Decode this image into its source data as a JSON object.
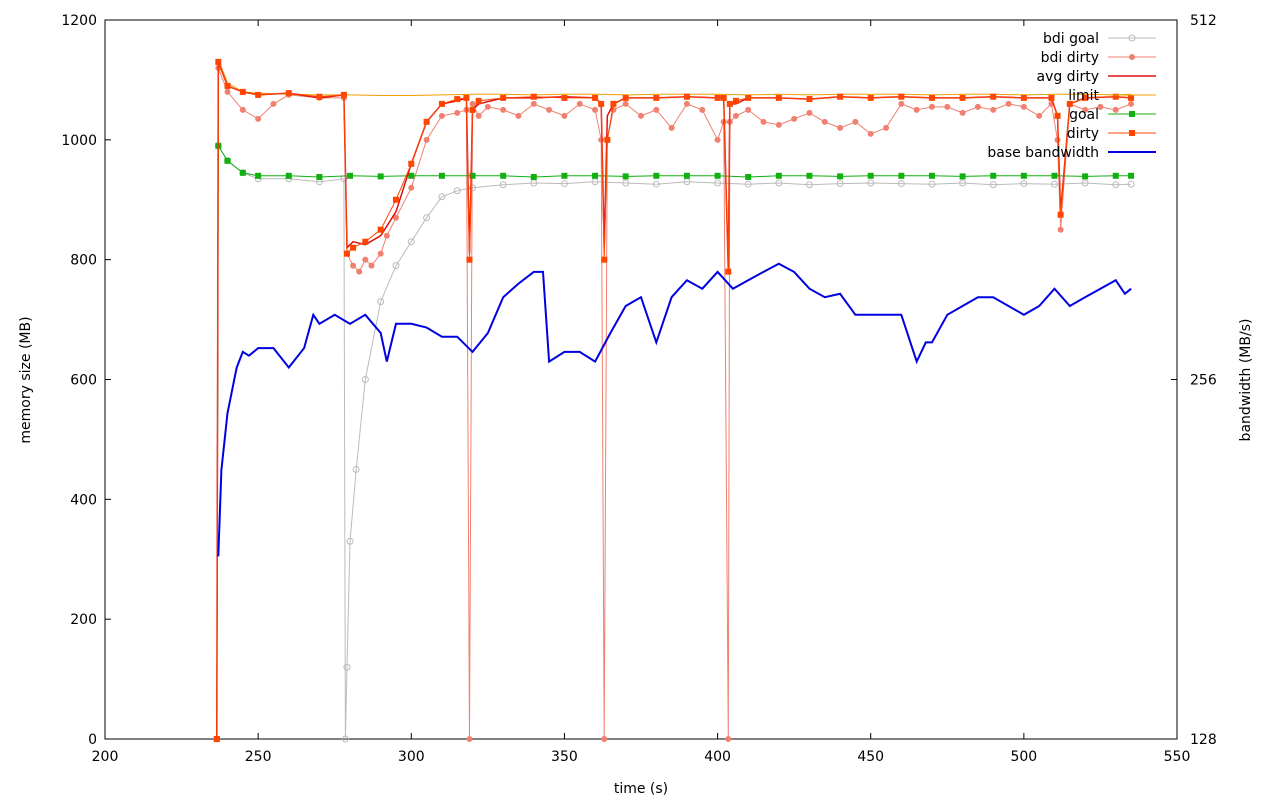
{
  "chart_data": {
    "type": "line",
    "xlabel": "time (s)",
    "ylabel": "memory size (MB)",
    "y2label": "bandwidth (MB/s)",
    "xlim": [
      200,
      550
    ],
    "ylim": [
      0,
      1200
    ],
    "y2lim": [
      128,
      512
    ],
    "y2scale": "log2",
    "x_ticks": [
      200,
      250,
      300,
      350,
      400,
      450,
      500,
      550
    ],
    "y_ticks": [
      0,
      200,
      400,
      600,
      800,
      1000,
      1200
    ],
    "y2_ticks": [
      128,
      256,
      512
    ],
    "grid": false,
    "legend_position": "top-right",
    "colors": {
      "bdi_goal": "#bbbbbb",
      "bdi_dirty": "#f08070",
      "avg_dirty": "#e01010",
      "limit": "#f0a000",
      "goal": "#10b010",
      "dirty": "#ff4500",
      "base_bandwidth": "#0000e0"
    },
    "legend": [
      {
        "key": "bdi_goal",
        "label": "bdi goal",
        "marker": "circle-open"
      },
      {
        "key": "bdi_dirty",
        "label": "bdi dirty",
        "marker": "circle"
      },
      {
        "key": "avg_dirty",
        "label": "avg dirty",
        "marker": "none"
      },
      {
        "key": "limit",
        "label": "limit",
        "marker": "none"
      },
      {
        "key": "goal",
        "label": "goal",
        "marker": "square"
      },
      {
        "key": "dirty",
        "label": "dirty",
        "marker": "square"
      },
      {
        "key": "base_bandwidth",
        "label": "base bandwidth",
        "marker": "none"
      }
    ],
    "series": [
      {
        "key": "bdi_goal",
        "axis": "y",
        "x": [
          236.5,
          237,
          240,
          245,
          250,
          260,
          270,
          278,
          278.5,
          279,
          280,
          282,
          285,
          290,
          295,
          300,
          305,
          310,
          315,
          320,
          330,
          340,
          350,
          360,
          370,
          380,
          390,
          400,
          410,
          420,
          430,
          440,
          450,
          460,
          470,
          480,
          490,
          500,
          510,
          520,
          530,
          535
        ],
        "y": [
          0,
          990,
          965,
          945,
          935,
          935,
          930,
          935,
          0,
          120,
          330,
          450,
          600,
          730,
          790,
          830,
          870,
          905,
          915,
          920,
          925,
          928,
          927,
          930,
          928,
          926,
          930,
          928,
          926,
          928,
          925,
          927,
          928,
          927,
          926,
          928,
          925,
          927,
          926,
          928,
          925,
          926
        ]
      },
      {
        "key": "bdi_dirty",
        "axis": "y",
        "x": [
          236.5,
          237,
          240,
          245,
          250,
          255,
          260,
          270,
          278,
          279,
          281,
          283,
          285,
          287,
          290,
          292,
          295,
          300,
          305,
          310,
          315,
          318,
          319,
          320,
          322,
          325,
          330,
          335,
          340,
          345,
          350,
          355,
          360,
          362,
          363,
          364,
          366,
          370,
          375,
          380,
          385,
          390,
          395,
          400,
          402,
          403.5,
          404,
          406,
          410,
          415,
          420,
          425,
          430,
          435,
          440,
          445,
          450,
          455,
          460,
          465,
          470,
          475,
          480,
          485,
          490,
          495,
          500,
          505,
          509,
          511,
          512,
          515,
          520,
          525,
          530,
          535
        ],
        "y": [
          0,
          1120,
          1080,
          1050,
          1035,
          1060,
          1075,
          1070,
          1070,
          810,
          790,
          780,
          800,
          790,
          810,
          840,
          870,
          920,
          1000,
          1040,
          1045,
          1050,
          0,
          1060,
          1040,
          1055,
          1050,
          1040,
          1060,
          1050,
          1040,
          1060,
          1050,
          1000,
          0,
          1000,
          1050,
          1060,
          1040,
          1050,
          1020,
          1060,
          1050,
          1000,
          1030,
          0,
          1030,
          1040,
          1050,
          1030,
          1025,
          1035,
          1045,
          1030,
          1020,
          1030,
          1010,
          1020,
          1060,
          1050,
          1055,
          1055,
          1045,
          1055,
          1050,
          1060,
          1055,
          1040,
          1060,
          1000,
          850,
          1060,
          1050,
          1055,
          1050,
          1060
        ]
      },
      {
        "key": "avg_dirty",
        "axis": "y",
        "x": [
          236.5,
          237,
          240,
          245,
          250,
          260,
          270,
          278,
          279,
          281,
          285,
          290,
          295,
          300,
          305,
          310,
          315,
          318,
          319,
          320,
          322,
          330,
          340,
          350,
          360,
          362,
          363,
          364,
          366,
          370,
          380,
          390,
          400,
          402,
          403.5,
          404,
          406,
          410,
          420,
          430,
          440,
          450,
          460,
          470,
          480,
          490,
          500,
          509,
          511,
          512,
          515,
          520,
          530,
          535
        ],
        "y": [
          0,
          1130,
          1090,
          1080,
          1075,
          1078,
          1070,
          1075,
          820,
          830,
          825,
          840,
          880,
          960,
          1030,
          1060,
          1065,
          1070,
          810,
          1050,
          1060,
          1070,
          1070,
          1072,
          1070,
          1060,
          820,
          1040,
          1060,
          1070,
          1070,
          1072,
          1070,
          1070,
          780,
          1060,
          1060,
          1070,
          1070,
          1068,
          1072,
          1070,
          1072,
          1070,
          1070,
          1072,
          1070,
          1070,
          1040,
          880,
          1060,
          1070,
          1072,
          1070
        ]
      },
      {
        "key": "limit",
        "axis": "y",
        "x": [
          236.5,
          237,
          240,
          245,
          250,
          260,
          270,
          280,
          290,
          300,
          310,
          320,
          330,
          340,
          350,
          360,
          370,
          380,
          390,
          400,
          410,
          420,
          430,
          440,
          450,
          460,
          470,
          480,
          490,
          500,
          510,
          520,
          530,
          535
        ],
        "y": [
          0,
          1135,
          1095,
          1080,
          1078,
          1076,
          1075,
          1075,
          1074,
          1074,
          1075,
          1076,
          1076,
          1075,
          1076,
          1076,
          1075,
          1076,
          1076,
          1076,
          1075,
          1076,
          1075,
          1076,
          1076,
          1076,
          1075,
          1076,
          1076,
          1075,
          1076,
          1076,
          1075,
          1076
        ]
      },
      {
        "key": "goal",
        "axis": "y",
        "x": [
          236.5,
          237,
          240,
          245,
          250,
          260,
          270,
          280,
          290,
          300,
          310,
          320,
          330,
          340,
          350,
          360,
          370,
          380,
          390,
          400,
          410,
          420,
          430,
          440,
          450,
          460,
          470,
          480,
          490,
          500,
          510,
          520,
          530,
          535
        ],
        "y": [
          0,
          990,
          965,
          945,
          940,
          940,
          938,
          940,
          939,
          940,
          940,
          940,
          940,
          938,
          940,
          940,
          939,
          940,
          940,
          940,
          938,
          940,
          940,
          939,
          940,
          940,
          940,
          939,
          940,
          940,
          940,
          939,
          940,
          940
        ]
      },
      {
        "key": "dirty",
        "axis": "y",
        "x": [
          236.5,
          237,
          240,
          245,
          250,
          260,
          270,
          278,
          279,
          281,
          285,
          290,
          295,
          300,
          305,
          310,
          315,
          318,
          319,
          320,
          322,
          330,
          340,
          350,
          360,
          362,
          363,
          364,
          366,
          370,
          380,
          390,
          400,
          402,
          403.5,
          404,
          406,
          410,
          420,
          430,
          440,
          450,
          460,
          470,
          480,
          490,
          500,
          509,
          511,
          512,
          515,
          520,
          530,
          535
        ],
        "y": [
          0,
          1130,
          1090,
          1080,
          1075,
          1078,
          1072,
          1075,
          810,
          820,
          830,
          850,
          900,
          960,
          1030,
          1060,
          1068,
          1070,
          800,
          1050,
          1065,
          1070,
          1072,
          1070,
          1070,
          1060,
          800,
          1000,
          1060,
          1070,
          1070,
          1072,
          1070,
          1070,
          780,
          1060,
          1065,
          1070,
          1070,
          1068,
          1072,
          1070,
          1072,
          1070,
          1070,
          1072,
          1070,
          1070,
          1040,
          875,
          1060,
          1070,
          1072,
          1070
        ]
      },
      {
        "key": "base_bandwidth",
        "axis": "y2",
        "x": [
          237,
          238,
          240,
          243,
          245,
          247,
          250,
          255,
          260,
          265,
          268,
          270,
          275,
          280,
          285,
          290,
          292,
          295,
          300,
          305,
          310,
          315,
          320,
          325,
          330,
          335,
          340,
          343,
          345,
          350,
          355,
          360,
          365,
          370,
          375,
          380,
          385,
          390,
          395,
          400,
          405,
          410,
          415,
          420,
          425,
          430,
          435,
          440,
          445,
          450,
          455,
          460,
          465,
          468,
          470,
          475,
          480,
          485,
          490,
          495,
          500,
          505,
          510,
          515,
          520,
          525,
          530,
          533,
          535
        ],
        "y": [
          182,
          215,
          240,
          262,
          270,
          268,
          272,
          272,
          262,
          272,
          290,
          285,
          290,
          285,
          290,
          280,
          265,
          285,
          285,
          283,
          278,
          278,
          270,
          280,
          300,
          308,
          315,
          315,
          265,
          270,
          270,
          265,
          280,
          295,
          300,
          275,
          300,
          310,
          305,
          315,
          305,
          310,
          315,
          320,
          315,
          305,
          300,
          302,
          290,
          290,
          290,
          290,
          265,
          275,
          275,
          290,
          295,
          300,
          300,
          295,
          290,
          295,
          305,
          295,
          300,
          305,
          310,
          302,
          305
        ]
      }
    ]
  }
}
